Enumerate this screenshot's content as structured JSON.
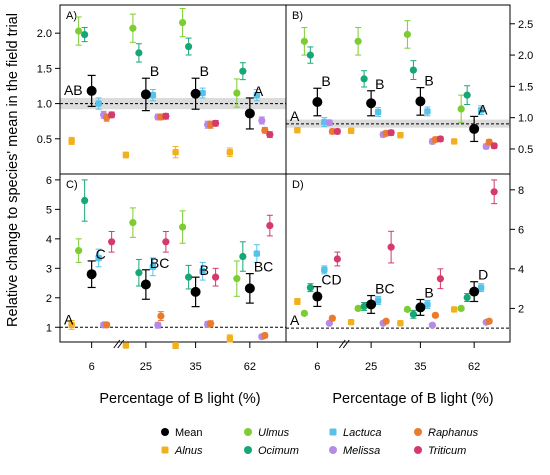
{
  "figure": {
    "ylabel": "Relative change to species' mean in the field trial",
    "xlabel": "Percentage of B light (%)"
  },
  "colors": {
    "Mean": "#000000",
    "Alnus": "#f2b01e",
    "Ulmus": "#7ccd32",
    "Ocimum": "#17a776",
    "Lactuca": "#56c2ea",
    "Melissa": "#b68ae6",
    "Raphanus": "#ea7a2e",
    "Triticum": "#d43a6a",
    "band": "#dcdcdc"
  },
  "legend": [
    {
      "key": "Mean",
      "label": "Mean",
      "italic": false,
      "marker": "black-dot"
    },
    {
      "key": "Alnus",
      "label": "Alnus",
      "italic": true,
      "marker": "orange-square"
    },
    {
      "key": "Ulmus",
      "label": "Ulmus",
      "italic": true,
      "marker": "green-dot"
    },
    {
      "key": "Ocimum",
      "label": "Ocimum",
      "italic": true,
      "marker": "teal-dot"
    },
    {
      "key": "Lactuca",
      "label": "Lactuca",
      "italic": true,
      "marker": "blue-square"
    },
    {
      "key": "Melissa",
      "label": "Melissa",
      "italic": true,
      "marker": "purple-dot"
    },
    {
      "key": "Raphanus",
      "label": "Raphanus",
      "italic": true,
      "marker": "orange-dot"
    },
    {
      "key": "Triticum",
      "label": "Triticum",
      "italic": true,
      "marker": "red-dot"
    }
  ],
  "chart_data": [
    {
      "panel": "A)",
      "type": "scatter",
      "categories": [
        "6",
        "25",
        "35",
        "62"
      ],
      "ylim": [
        0,
        2.4
      ],
      "yticks": [
        0.5,
        1.0,
        1.5,
        2.0
      ],
      "ytick_labels": [
        "0.5",
        "1.0",
        "1.5",
        "2.0"
      ],
      "reference_line": 1.0,
      "band": [
        0.92,
        1.08
      ],
      "axis_side": "left",
      "show_x_ticks": false,
      "series": [
        {
          "name": "Alnus",
          "marker": "square",
          "values": [
            0.47,
            0.27,
            0.31,
            0.31
          ],
          "err": [
            0.05,
            0.04,
            0.08,
            0.06
          ]
        },
        {
          "name": "Ulmus",
          "marker": "circle",
          "values": [
            2.03,
            2.07,
            2.15,
            1.15
          ],
          "err": [
            0.2,
            0.2,
            0.2,
            0.2
          ]
        },
        {
          "name": "Ocimum",
          "marker": "circle",
          "values": [
            1.98,
            1.72,
            1.81,
            1.46
          ],
          "err": [
            0.1,
            0.13,
            0.12,
            0.12
          ]
        },
        {
          "name": "Lactuca",
          "marker": "square",
          "values": [
            1.0,
            1.12,
            1.15,
            1.12
          ],
          "err": [
            0.08,
            0.08,
            0.07,
            0.08
          ]
        },
        {
          "name": "Melissa",
          "marker": "circle",
          "values": [
            0.84,
            0.81,
            0.7,
            0.76
          ],
          "err": [
            0.05,
            0.04,
            0.05,
            0.05
          ]
        },
        {
          "name": "Raphanus",
          "marker": "circle",
          "values": [
            0.8,
            0.81,
            0.7,
            0.62
          ],
          "err": [
            0.05,
            0.04,
            0.05,
            0.04
          ]
        },
        {
          "name": "Triticum",
          "marker": "circle",
          "values": [
            0.84,
            0.82,
            0.72,
            0.56
          ],
          "err": [
            0.04,
            0.04,
            0.04,
            0.04
          ]
        }
      ],
      "mean": {
        "values": [
          1.18,
          1.13,
          1.14,
          0.86
        ],
        "err": [
          0.22,
          0.23,
          0.22,
          0.22
        ],
        "labels": [
          "AB",
          "B",
          "B",
          "A"
        ]
      }
    },
    {
      "panel": "B)",
      "type": "scatter",
      "categories": [
        "6",
        "25",
        "35",
        "62"
      ],
      "ylim": [
        0.1,
        2.8
      ],
      "yticks": [
        0.5,
        1.0,
        1.5,
        2.0,
        2.5
      ],
      "ytick_labels": [
        "0.5",
        "1.0",
        "1.5",
        "2.0",
        "2.5"
      ],
      "reference_line": 0.9,
      "band": [
        0.84,
        0.97
      ],
      "axis_side": "right",
      "show_x_ticks": false,
      "series": [
        {
          "name": "Alnus",
          "marker": "square",
          "values": [
            0.8,
            0.79,
            0.72,
            0.62
          ],
          "err": [
            0.04,
            0.04,
            0.04,
            0.04
          ]
        },
        {
          "name": "Ulmus",
          "marker": "circle",
          "values": [
            2.22,
            2.22,
            2.33,
            1.14
          ],
          "err": [
            0.22,
            0.22,
            0.22,
            0.22
          ]
        },
        {
          "name": "Ocimum",
          "marker": "circle",
          "values": [
            2.0,
            1.62,
            1.76,
            1.36
          ],
          "err": [
            0.13,
            0.13,
            0.15,
            0.15
          ]
        },
        {
          "name": "Lactuca",
          "marker": "square",
          "values": [
            0.93,
            1.09,
            1.1,
            1.12
          ],
          "err": [
            0.07,
            0.07,
            0.07,
            0.07
          ]
        },
        {
          "name": "Melissa",
          "marker": "circle",
          "values": [
            0.92,
            0.73,
            0.62,
            0.54
          ],
          "err": [
            0.04,
            0.04,
            0.04,
            0.04
          ]
        },
        {
          "name": "Raphanus",
          "marker": "circle",
          "values": [
            0.78,
            0.75,
            0.65,
            0.61
          ],
          "err": [
            0.04,
            0.04,
            0.04,
            0.04
          ]
        },
        {
          "name": "Triticum",
          "marker": "circle",
          "values": [
            0.78,
            0.76,
            0.66,
            0.55
          ],
          "err": [
            0.04,
            0.04,
            0.04,
            0.04
          ]
        }
      ],
      "mean": {
        "values": [
          1.25,
          1.23,
          1.26,
          0.82
        ],
        "err": [
          0.22,
          0.2,
          0.22,
          0.2
        ],
        "labels": [
          "B",
          "B",
          "B",
          "A"
        ]
      }
    },
    {
      "panel": "C)",
      "type": "scatter",
      "categories": [
        "6",
        "25",
        "35",
        "62"
      ],
      "ylim": [
        0.5,
        6.2
      ],
      "yticks": [
        1,
        2,
        3,
        4,
        5,
        6
      ],
      "ytick_labels": [
        "1",
        "2",
        "3",
        "4",
        "5",
        "6"
      ],
      "reference_line": 1.0,
      "band": null,
      "axis_side": "left",
      "show_x_ticks": true,
      "series": [
        {
          "name": "Alnus",
          "marker": "square",
          "values": [
            1.08,
            0.38,
            0.38,
            0.62
          ],
          "err": [
            0.15,
            0.08,
            0.1,
            0.12
          ]
        },
        {
          "name": "Ulmus",
          "marker": "circle",
          "values": [
            3.6,
            4.55,
            4.4,
            2.65
          ],
          "err": [
            0.4,
            0.5,
            0.55,
            0.6
          ]
        },
        {
          "name": "Ocimum",
          "marker": "circle",
          "values": [
            5.3,
            2.85,
            2.7,
            3.4
          ],
          "err": [
            0.7,
            0.45,
            0.4,
            0.5
          ]
        },
        {
          "name": "Lactuca",
          "marker": "square",
          "values": [
            3.35,
            3.05,
            2.9,
            3.5
          ],
          "err": [
            0.3,
            0.3,
            0.3,
            0.3
          ]
        },
        {
          "name": "Melissa",
          "marker": "circle",
          "values": [
            1.08,
            1.07,
            1.1,
            0.68
          ],
          "err": [
            0.08,
            0.1,
            0.1,
            0.08
          ]
        },
        {
          "name": "Raphanus",
          "marker": "circle",
          "values": [
            1.08,
            1.38,
            1.12,
            0.72
          ],
          "err": [
            0.08,
            0.15,
            0.1,
            0.08
          ]
        },
        {
          "name": "Triticum",
          "marker": "circle",
          "values": [
            3.9,
            3.9,
            2.7,
            4.45
          ],
          "err": [
            0.35,
            0.35,
            0.3,
            0.35
          ]
        }
      ],
      "mean": {
        "values": [
          2.8,
          2.45,
          2.2,
          2.32
        ],
        "err": [
          0.45,
          0.5,
          0.5,
          0.5
        ],
        "labels": [
          "C",
          "BC",
          "B",
          "BC"
        ]
      }
    },
    {
      "panel": "D)",
      "type": "scatter",
      "categories": [
        "6",
        "25",
        "35",
        "62"
      ],
      "ylim": [
        0.3,
        8.8
      ],
      "yticks": [
        2,
        4,
        6,
        8
      ],
      "ytick_labels": [
        "2",
        "4",
        "6",
        "8"
      ],
      "reference_line": 1.0,
      "band": null,
      "axis_side": "right",
      "show_x_ticks": true,
      "series": [
        {
          "name": "Alnus",
          "marker": "square",
          "values": [
            2.35,
            1.3,
            1.25,
            1.95
          ],
          "err": [
            0.15,
            0.1,
            0.12,
            0.12
          ]
        },
        {
          "name": "Ulmus",
          "marker": "circle",
          "values": [
            1.75,
            2.0,
            1.95,
            2.0
          ],
          "err": [
            0.1,
            0.1,
            0.1,
            0.1
          ]
        },
        {
          "name": "Ocimum",
          "marker": "circle",
          "values": [
            3.05,
            2.1,
            1.7,
            2.55
          ],
          "err": [
            0.2,
            0.2,
            0.2,
            0.2
          ]
        },
        {
          "name": "Lactuca",
          "marker": "square",
          "values": [
            3.95,
            2.4,
            2.2,
            3.05
          ],
          "err": [
            0.2,
            0.2,
            0.2,
            0.2
          ]
        },
        {
          "name": "Melissa",
          "marker": "circle",
          "values": [
            1.25,
            1.25,
            1.15,
            1.3
          ],
          "err": [
            0.08,
            0.08,
            0.08,
            0.08
          ]
        },
        {
          "name": "Raphanus",
          "marker": "circle",
          "values": [
            1.5,
            1.35,
            1.65,
            1.35
          ],
          "err": [
            0.1,
            0.1,
            0.1,
            0.1
          ]
        },
        {
          "name": "Triticum",
          "marker": "circle",
          "values": [
            4.5,
            5.1,
            3.5,
            7.9
          ],
          "err": [
            0.35,
            0.8,
            0.5,
            0.6
          ]
        }
      ],
      "mean": {
        "values": [
          2.6,
          2.2,
          2.05,
          2.85
        ],
        "err": [
          0.5,
          0.45,
          0.4,
          0.5
        ],
        "labels": [
          "CD",
          "BC",
          "B",
          "D"
        ]
      }
    }
  ]
}
